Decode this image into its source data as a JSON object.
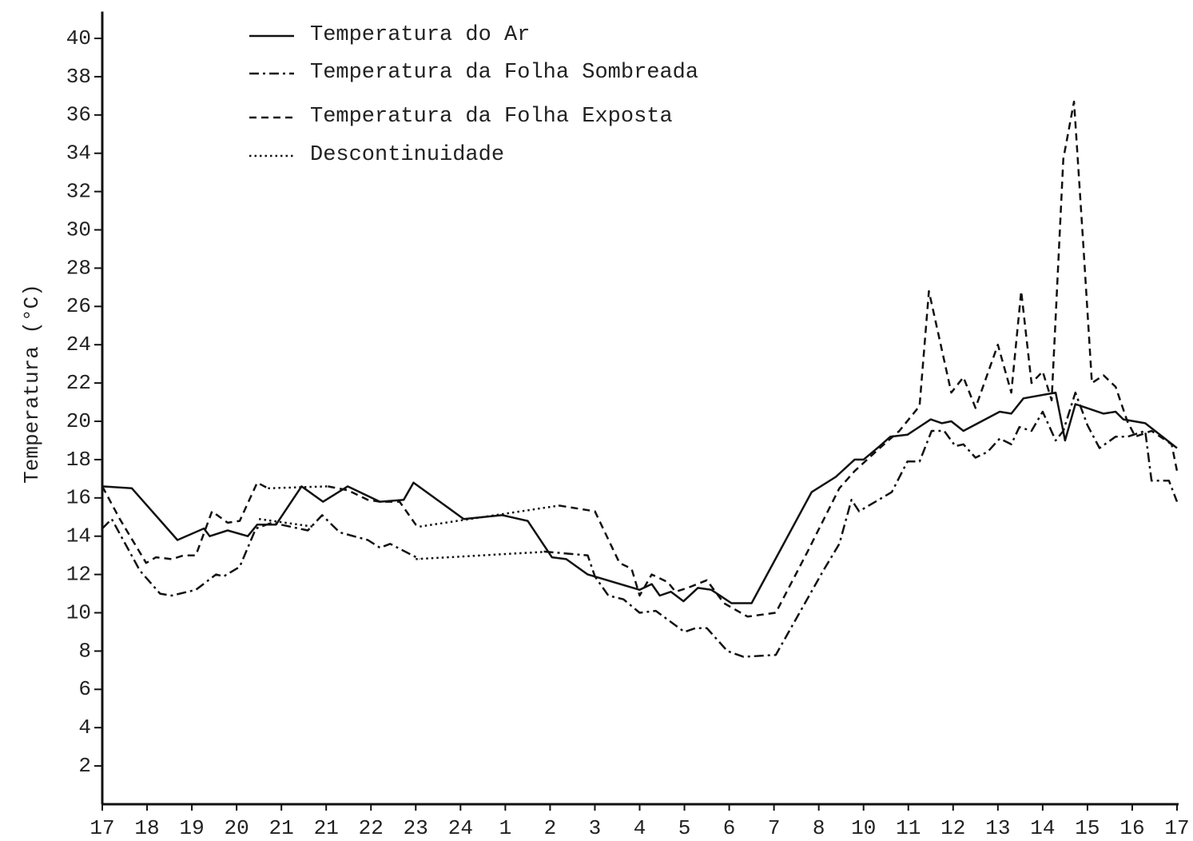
{
  "chart_data": {
    "type": "line",
    "y_label": "Temperatura (°C)",
    "xlim": [
      0,
      24
    ],
    "ylim": [
      0,
      41.4
    ],
    "xticks": [
      {
        "value": 0,
        "label": "17"
      },
      {
        "value": 1,
        "label": "18"
      },
      {
        "value": 2,
        "label": "19"
      },
      {
        "value": 3,
        "label": "20"
      },
      {
        "value": 4,
        "label": "21"
      },
      {
        "value": 5,
        "label": "21"
      },
      {
        "value": 6,
        "label": "22"
      },
      {
        "value": 7,
        "label": "23"
      },
      {
        "value": 8,
        "label": "24"
      },
      {
        "value": 9,
        "label": "1"
      },
      {
        "value": 10,
        "label": "2"
      },
      {
        "value": 11,
        "label": "3"
      },
      {
        "value": 12,
        "label": "4"
      },
      {
        "value": 13,
        "label": "5"
      },
      {
        "value": 14,
        "label": "6"
      },
      {
        "value": 15,
        "label": "7"
      },
      {
        "value": 16,
        "label": "8"
      },
      {
        "value": 17,
        "label": "10"
      },
      {
        "value": 18,
        "label": "11"
      },
      {
        "value": 19,
        "label": "12"
      },
      {
        "value": 20,
        "label": "13"
      },
      {
        "value": 21,
        "label": "14"
      },
      {
        "value": 22,
        "label": "15"
      },
      {
        "value": 23,
        "label": "16"
      },
      {
        "value": 24,
        "label": "17"
      }
    ],
    "yticks": [
      2,
      4,
      6,
      8,
      10,
      12,
      14,
      16,
      18,
      20,
      22,
      24,
      26,
      28,
      30,
      32,
      34,
      36,
      38,
      40
    ],
    "grid": false,
    "legend": "top-left",
    "series": [
      {
        "name": "Temperatura do Ar",
        "color": "#111111",
        "dash": "solid",
        "x": [
          0,
          0.66,
          1.68,
          2.27,
          2.4,
          2.8,
          3.25,
          3.46,
          3.88,
          4.45,
          4.93,
          5.48,
          5.93,
          6.2,
          6.73,
          6.95,
          8.07,
          8.93,
          9.5,
          10.04,
          10.36,
          10.84,
          12.0,
          12.27,
          12.45,
          12.7,
          12.98,
          13.3,
          13.6,
          14.05,
          14.5,
          15.84,
          16.38,
          16.8,
          17.0,
          17.36,
          17.6,
          17.98,
          18.5,
          18.75,
          18.96,
          19.23,
          20.04,
          20.3,
          20.57,
          21.29,
          21.5,
          21.73,
          22.36,
          22.63,
          22.8,
          23.29,
          24
        ],
        "values": [
          16.6,
          16.5,
          13.8,
          14.4,
          14.0,
          14.3,
          14.0,
          14.6,
          14.6,
          16.6,
          15.8,
          16.6,
          16.1,
          15.8,
          15.9,
          16.8,
          14.9,
          15.1,
          14.8,
          12.9,
          12.8,
          12.0,
          11.2,
          11.5,
          10.9,
          11.1,
          10.6,
          11.3,
          11.2,
          10.5,
          10.5,
          16.3,
          17.1,
          18.0,
          18.0,
          18.7,
          19.2,
          19.3,
          20.1,
          19.9,
          20.0,
          19.5,
          20.5,
          20.4,
          21.2,
          21.5,
          19.0,
          20.9,
          20.4,
          20.5,
          20.1,
          19.9,
          18.6
        ]
      },
      {
        "name": "Temperatura da Folha Sombreada",
        "color": "#111111",
        "dash": "dashdot",
        "x": [
          0,
          0.21,
          0.84,
          1.29,
          1.55,
          2.09,
          2.54,
          2.71,
          3.07,
          3.43,
          3.79,
          4.59,
          4.91,
          5.3,
          5.93,
          6.2,
          6.43,
          7.09,
          null,
          9.86,
          10.84,
          11.0,
          11.3,
          11.64,
          12.0,
          12.36,
          13.0,
          13.25,
          13.5,
          13.96,
          14.32,
          15.04,
          16.1,
          16.46,
          16.73,
          16.9,
          17.63,
          17.98,
          18.25,
          18.52,
          18.8,
          19.05,
          19.23,
          19.5,
          19.77,
          20.04,
          20.3,
          20.48,
          20.75,
          21.0,
          21.29,
          21.46,
          21.73,
          22.0,
          22.27,
          22.63,
          22.9,
          23.29,
          23.43,
          23.82,
          24
        ],
        "values": [
          14.4,
          14.9,
          12.2,
          11.0,
          10.9,
          11.2,
          12.0,
          11.9,
          12.4,
          14.4,
          14.7,
          14.3,
          15.1,
          14.2,
          13.8,
          13.4,
          13.6,
          12.8,
          null,
          13.2,
          13.0,
          11.9,
          10.9,
          10.7,
          10.0,
          10.1,
          9.0,
          9.2,
          9.2,
          8.0,
          7.7,
          7.8,
          12.2,
          13.6,
          15.9,
          15.3,
          16.3,
          17.9,
          17.9,
          19.5,
          19.5,
          18.7,
          18.8,
          18.1,
          18.4,
          19.1,
          18.8,
          19.7,
          19.5,
          20.5,
          19.0,
          19.5,
          21.5,
          19.8,
          18.6,
          19.2,
          19.2,
          19.5,
          16.9,
          16.9,
          15.8
        ]
      },
      {
        "name": "Temperatura da Folha Exposta",
        "color": "#111111",
        "dash": "dashed",
        "x": [
          0,
          0.39,
          0.98,
          1.2,
          1.55,
          1.82,
          2.09,
          2.45,
          2.8,
          3.07,
          3.46,
          3.7,
          null,
          5.04,
          5.48,
          5.93,
          6.2,
          6.64,
          7.0,
          7.09,
          null,
          10.2,
          11.0,
          11.55,
          11.82,
          12.0,
          12.27,
          12.63,
          12.8,
          13.07,
          13.5,
          13.88,
          14.41,
          15.04,
          15.75,
          16.46,
          16.8,
          17.36,
          17.8,
          18.25,
          18.46,
          18.96,
          19.23,
          19.5,
          20.0,
          20.3,
          20.52,
          20.75,
          21.0,
          21.2,
          21.46,
          21.7,
          21.9,
          22.1,
          22.36,
          22.63,
          22.89,
          23.07,
          23.43,
          23.88,
          24
        ],
        "values": [
          16.6,
          14.9,
          12.6,
          12.9,
          12.8,
          13.0,
          13.0,
          15.3,
          14.7,
          14.8,
          16.8,
          16.5,
          null,
          16.6,
          16.4,
          15.9,
          15.8,
          15.8,
          14.6,
          14.5,
          null,
          15.6,
          15.3,
          12.6,
          12.3,
          10.9,
          12.0,
          11.6,
          11.1,
          11.3,
          11.7,
          10.5,
          9.8,
          10.0,
          13.2,
          16.5,
          17.4,
          18.6,
          19.5,
          20.8,
          26.8,
          21.5,
          22.3,
          20.7,
          24.0,
          21.5,
          26.8,
          22.0,
          22.6,
          21.1,
          33.7,
          36.7,
          29.5,
          22.0,
          22.4,
          21.8,
          20.0,
          19.2,
          19.5,
          18.8,
          17.4
        ]
      },
      {
        "name": "Descontinuidade",
        "color": "#111111",
        "dash": "dotted",
        "x": [
          3.5,
          4.7,
          null,
          3.7,
          5.04,
          null,
          7.0,
          10.0,
          null,
          7.09,
          10.2
        ],
        "values": [
          14.9,
          14.5,
          null,
          16.5,
          16.6,
          null,
          12.8,
          13.2,
          null,
          14.5,
          15.6
        ]
      }
    ]
  }
}
